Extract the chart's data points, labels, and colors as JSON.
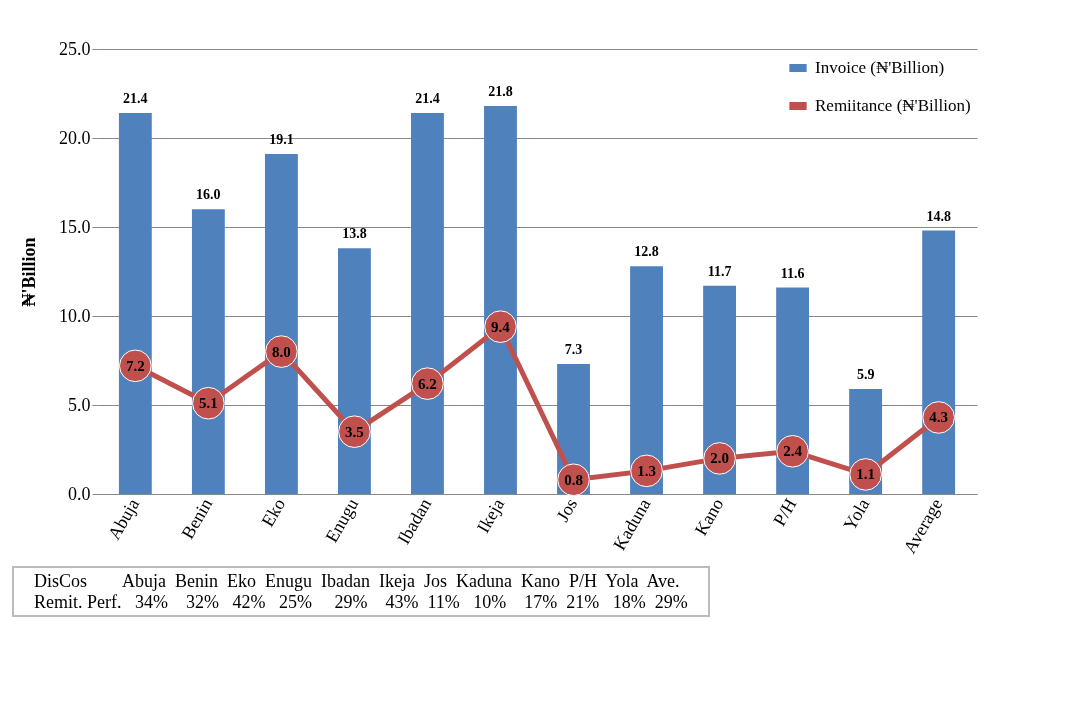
{
  "chart_data": {
    "type": "bar",
    "categories": [
      "Abuja",
      "Benin",
      "Eko",
      "Enugu",
      "Ibadan",
      "Ikeja",
      "Jos",
      "Kaduna",
      "Kano",
      "P/H",
      "Yola",
      "Average"
    ],
    "ylabel": "₦'Billion",
    "series": [
      {
        "name": "Invoice (₦'Billion)",
        "color": "#4f81bd",
        "values": [
          21.4,
          16.0,
          19.1,
          13.8,
          21.4,
          21.8,
          7.3,
          12.8,
          11.7,
          11.6,
          5.9,
          14.8
        ],
        "value_labels": [
          "21.4",
          "16.0",
          "19.1",
          "13.8",
          "21.4",
          "21.8",
          "7.3",
          "12.8",
          "11.7",
          "11.6",
          "5.9",
          "14.8"
        ]
      },
      {
        "name": "Remiitance (₦'Billion)",
        "type": "line",
        "color": "#c0504d",
        "marker": "circle",
        "values": [
          7.2,
          5.1,
          8.0,
          3.5,
          6.2,
          9.4,
          0.8,
          1.3,
          2.0,
          2.4,
          1.1,
          4.3
        ],
        "value_labels": [
          "7.2",
          "5.1",
          "8.0",
          "3.5",
          "6.2",
          "9.4",
          "0.8",
          "1.3",
          "2.0",
          "2.4",
          "1.1",
          "4.3"
        ]
      }
    ],
    "ylim": [
      0,
      25
    ],
    "yticks": [
      {
        "value": 0,
        "label": "0.0"
      },
      {
        "value": 5,
        "label": "5.0"
      },
      {
        "value": 10,
        "label": "10.0"
      },
      {
        "value": 15,
        "label": "15.0"
      },
      {
        "value": 20,
        "label": "20.0"
      },
      {
        "value": 25,
        "label": "25.0"
      }
    ],
    "grid": "y",
    "legend": "top right",
    "annotations": [
      "DisCos        Abuja  Benin  Eko  Enugu  Ibadan  Ikeja  Jos  Kaduna  Kano  P/H  Yola  Ave.",
      "Remit. Perf.   34%    32%   42%   25%     29%    43%  11%   10%    17%  21%   18%  29%"
    ]
  }
}
